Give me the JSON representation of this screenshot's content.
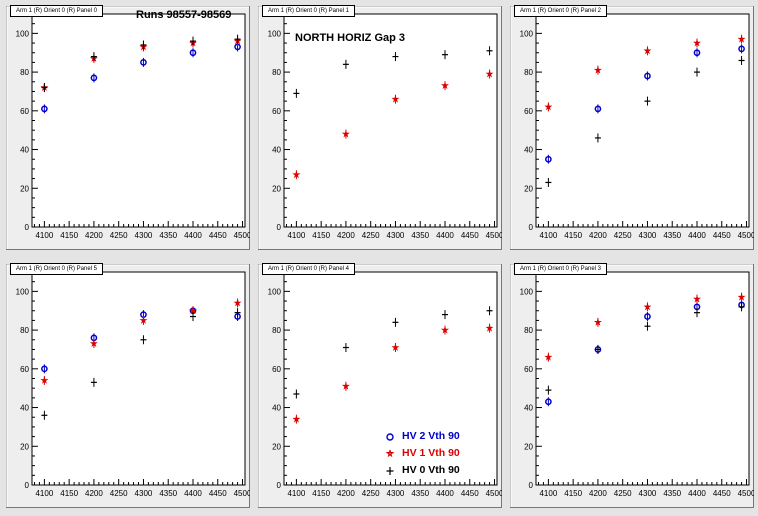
{
  "global": {
    "runs_label": "Runs 98557-98569"
  },
  "panels": [
    {
      "title": "Arm 1 (R) Orient 0 (R) Panel 0"
    },
    {
      "title": "Arm 1 (R) Orient 0 (R) Panel 1",
      "label": "NORTH HORIZ Gap 3"
    },
    {
      "title": "Arm 1 (R) Orient 0 (R) Panel 2"
    },
    {
      "title": "Arm 1 (R) Orient 0 (R) Panel 5"
    },
    {
      "title": "Arm 1 (R) Orient 0 (R) Panel 4"
    },
    {
      "title": "Arm 1 (R) Orient 0 (R) Panel 3"
    }
  ],
  "legend": {
    "entries": [
      {
        "label": "HV 2 Vth 90",
        "color": "#0000cc",
        "marker": "circle"
      },
      {
        "label": "HV 1 Vth 90",
        "color": "#dd0000",
        "marker": "star"
      },
      {
        "label": "HV 0 Vth 90",
        "color": "#000000",
        "marker": "plus"
      }
    ]
  },
  "chart_data": [
    {
      "type": "scatter",
      "xlim": [
        4075,
        4505
      ],
      "ylim": [
        0,
        110
      ],
      "xticks": [
        4100,
        4150,
        4200,
        4250,
        4300,
        4350,
        4400,
        4450,
        4500
      ],
      "yticks": [
        0,
        20,
        40,
        60,
        80,
        100
      ],
      "series": [
        {
          "color": "#0000cc",
          "marker": "circle",
          "x": [
            4100,
            4200,
            4300,
            4400,
            4490
          ],
          "y": [
            61,
            77,
            85,
            90,
            93
          ]
        },
        {
          "color": "#dd0000",
          "marker": "star",
          "x": [
            4100,
            4200,
            4300,
            4400,
            4490
          ],
          "y": [
            72,
            87,
            93,
            95,
            96
          ]
        },
        {
          "color": "#000000",
          "marker": "plus",
          "x": [
            4100,
            4200,
            4300,
            4400,
            4490
          ],
          "y": [
            72,
            88,
            94,
            96,
            97
          ]
        }
      ]
    },
    {
      "type": "scatter",
      "xlim": [
        4075,
        4505
      ],
      "ylim": [
        0,
        110
      ],
      "xticks": [
        4100,
        4150,
        4200,
        4250,
        4300,
        4350,
        4400,
        4450,
        4500
      ],
      "yticks": [
        0,
        20,
        40,
        60,
        80,
        100
      ],
      "series": [
        {
          "color": "#dd0000",
          "marker": "star",
          "x": [
            4100,
            4200,
            4300,
            4400,
            4490
          ],
          "y": [
            27,
            48,
            66,
            73,
            79
          ]
        },
        {
          "color": "#000000",
          "marker": "plus",
          "x": [
            4100,
            4200,
            4300,
            4400,
            4490
          ],
          "y": [
            69,
            84,
            88,
            89,
            91
          ]
        }
      ]
    },
    {
      "type": "scatter",
      "xlim": [
        4075,
        4505
      ],
      "ylim": [
        0,
        110
      ],
      "xticks": [
        4100,
        4150,
        4200,
        4250,
        4300,
        4350,
        4400,
        4450,
        4500
      ],
      "yticks": [
        0,
        20,
        40,
        60,
        80,
        100
      ],
      "series": [
        {
          "color": "#0000cc",
          "marker": "circle",
          "x": [
            4100,
            4200,
            4300,
            4400,
            4490
          ],
          "y": [
            35,
            61,
            78,
            90,
            92
          ]
        },
        {
          "color": "#dd0000",
          "marker": "star",
          "x": [
            4100,
            4200,
            4300,
            4400,
            4490
          ],
          "y": [
            62,
            81,
            91,
            95,
            97
          ]
        },
        {
          "color": "#000000",
          "marker": "plus",
          "x": [
            4100,
            4200,
            4300,
            4400,
            4490
          ],
          "y": [
            23,
            46,
            65,
            80,
            86
          ]
        }
      ]
    },
    {
      "type": "scatter",
      "xlim": [
        4075,
        4505
      ],
      "ylim": [
        0,
        110
      ],
      "xticks": [
        4100,
        4150,
        4200,
        4250,
        4300,
        4350,
        4400,
        4450,
        4500
      ],
      "yticks": [
        0,
        20,
        40,
        60,
        80,
        100
      ],
      "series": [
        {
          "color": "#0000cc",
          "marker": "circle",
          "x": [
            4100,
            4200,
            4300,
            4400,
            4490
          ],
          "y": [
            60,
            76,
            88,
            90,
            87
          ]
        },
        {
          "color": "#dd0000",
          "marker": "star",
          "x": [
            4100,
            4200,
            4300,
            4400,
            4490
          ],
          "y": [
            54,
            73,
            85,
            90,
            94
          ]
        },
        {
          "color": "#000000",
          "marker": "plus",
          "x": [
            4100,
            4200,
            4300,
            4400,
            4490
          ],
          "y": [
            36,
            53,
            75,
            87,
            89
          ]
        }
      ]
    },
    {
      "type": "scatter",
      "xlim": [
        4075,
        4505
      ],
      "ylim": [
        0,
        110
      ],
      "xticks": [
        4100,
        4150,
        4200,
        4250,
        4300,
        4350,
        4400,
        4450,
        4500
      ],
      "yticks": [
        0,
        20,
        40,
        60,
        80,
        100
      ],
      "series": [
        {
          "color": "#dd0000",
          "marker": "star",
          "x": [
            4100,
            4200,
            4300,
            4400,
            4490
          ],
          "y": [
            34,
            51,
            71,
            80,
            81
          ]
        },
        {
          "color": "#000000",
          "marker": "plus",
          "x": [
            4100,
            4200,
            4300,
            4400,
            4490
          ],
          "y": [
            47,
            71,
            84,
            88,
            90
          ]
        }
      ]
    },
    {
      "type": "scatter",
      "xlim": [
        4075,
        4505
      ],
      "ylim": [
        0,
        110
      ],
      "xticks": [
        4100,
        4150,
        4200,
        4250,
        4300,
        4350,
        4400,
        4450,
        4500
      ],
      "yticks": [
        0,
        20,
        40,
        60,
        80,
        100
      ],
      "series": [
        {
          "color": "#0000cc",
          "marker": "circle",
          "x": [
            4100,
            4200,
            4300,
            4400,
            4490
          ],
          "y": [
            43,
            70,
            87,
            92,
            93
          ]
        },
        {
          "color": "#dd0000",
          "marker": "star",
          "x": [
            4100,
            4200,
            4300,
            4400,
            4490
          ],
          "y": [
            66,
            84,
            92,
            96,
            97
          ]
        },
        {
          "color": "#000000",
          "marker": "plus",
          "x": [
            4100,
            4200,
            4300,
            4400,
            4490
          ],
          "y": [
            49,
            70,
            82,
            89,
            92
          ]
        }
      ]
    }
  ]
}
